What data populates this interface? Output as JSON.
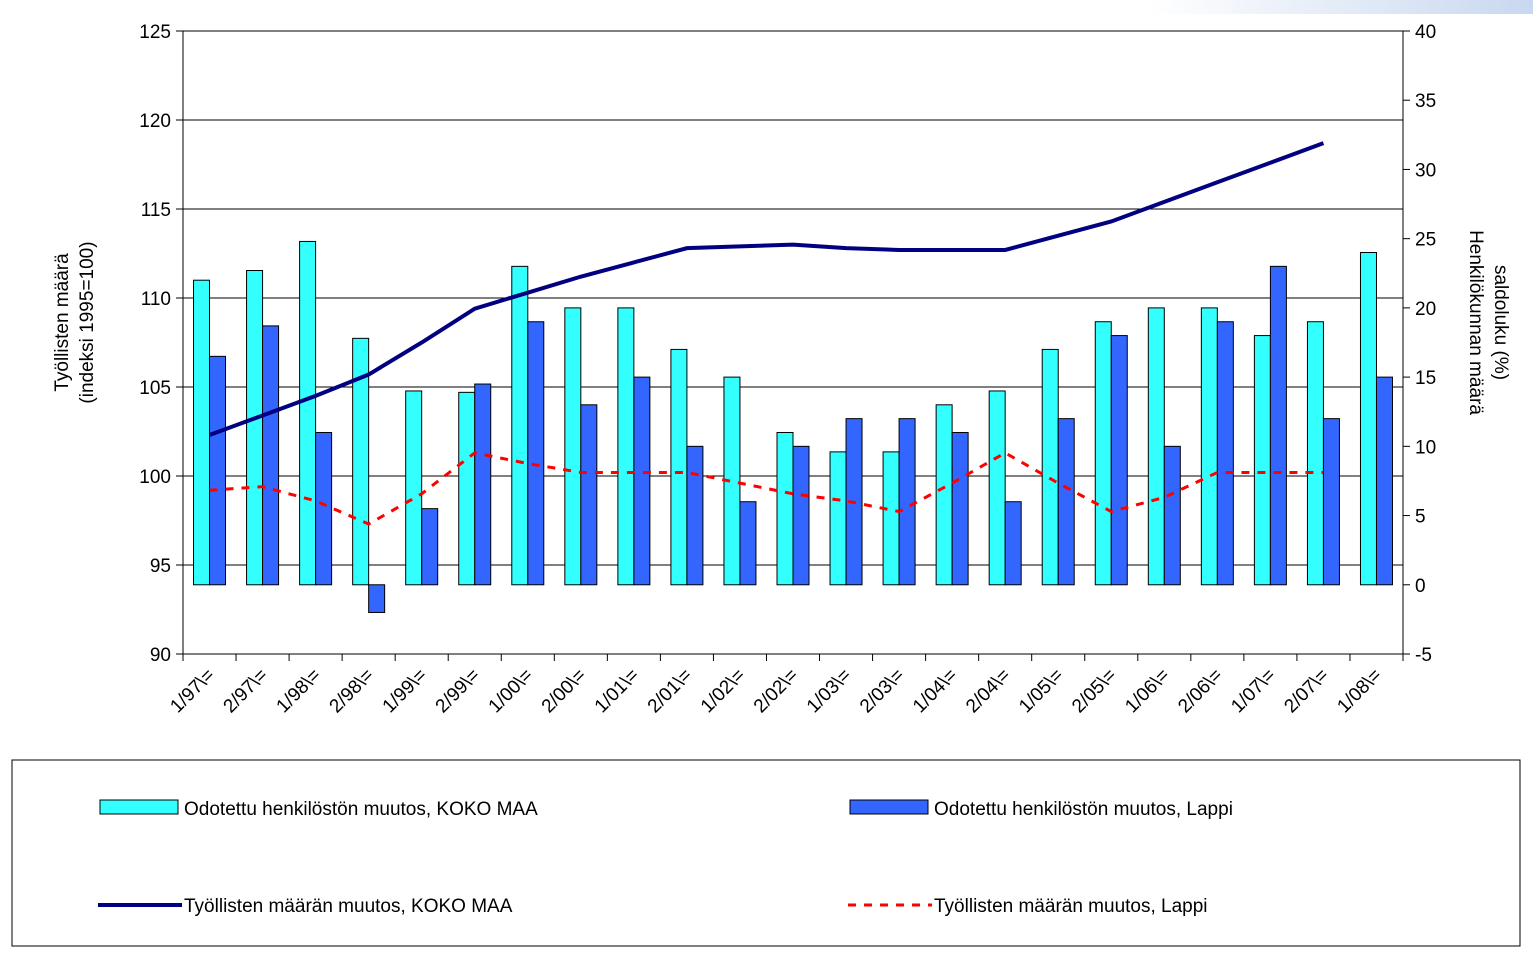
{
  "chart_data": {
    "type": "combo",
    "ylabel": [
      "Työllisten määrä",
      "(indeksi 1995=100)"
    ],
    "y2label": [
      "Henkilökunnan määrä",
      "saldoluku (%)"
    ],
    "categories": [
      "1/97\\=",
      "2/97\\=",
      "1/98\\=",
      "2/98\\=",
      "1/99\\=",
      "2/99\\=",
      "1/00\\=",
      "2/00\\=",
      "1/01\\=",
      "2/01\\=",
      "1/02\\=",
      "2/02\\=",
      "1/03\\=",
      "2/03\\=",
      "1/04\\=",
      "2/04\\=",
      "1/05\\=",
      "2/05\\=",
      "1/06\\=",
      "2/06\\=",
      "1/07\\=",
      "2/07\\=",
      "1/08\\="
    ],
    "ylim": [
      90,
      125
    ],
    "yticks": [
      90,
      95,
      100,
      105,
      110,
      115,
      120,
      125
    ],
    "y2lim": [
      -5,
      40
    ],
    "y2ticks": [
      -5,
      0,
      5,
      10,
      15,
      20,
      25,
      30,
      35,
      40
    ],
    "grid": true,
    "series": [
      {
        "name": "Odotettu henkilöstön muutos, KOKO MAA",
        "type": "bar",
        "axis": "y2",
        "color": "#33ffff",
        "values": [
          22,
          22.7,
          24.8,
          17.8,
          14,
          13.9,
          23,
          20,
          20,
          17,
          15,
          11,
          9.6,
          9.6,
          13,
          14,
          17,
          19,
          20,
          20,
          18,
          19,
          24
        ]
      },
      {
        "name": "Odotettu henkilöstön muutos, Lappi",
        "type": "bar",
        "axis": "y2",
        "color": "#3366ff",
        "values": [
          16.5,
          18.7,
          11,
          -2,
          5.5,
          14.5,
          19,
          13,
          15,
          10,
          6,
          10,
          12,
          12,
          11,
          6,
          12,
          18,
          10,
          19,
          23,
          12,
          15
        ]
      },
      {
        "name": "Työllisten määrän muutos, KOKO MAA",
        "type": "line",
        "color": "#000080",
        "dash": false,
        "values": [
          102.3,
          103.4,
          104.5,
          105.7,
          107.5,
          109.4,
          110.3,
          111.2,
          112,
          112.8,
          112.9,
          113,
          112.8,
          112.7,
          112.7,
          112.7,
          113.5,
          114.3,
          115.4,
          116.5,
          117.6,
          118.7,
          null
        ]
      },
      {
        "name": "Työllisten määrän muutos, Lappi",
        "type": "line",
        "color": "#ff0000",
        "dash": true,
        "values": [
          99.2,
          99.4,
          98.6,
          97.3,
          99,
          101.3,
          100.7,
          100.2,
          100.2,
          100.2,
          99.6,
          99,
          98.6,
          98,
          99.6,
          101.3,
          99.6,
          98,
          98.8,
          100.2,
          100.2,
          100.2,
          null
        ]
      }
    ]
  }
}
